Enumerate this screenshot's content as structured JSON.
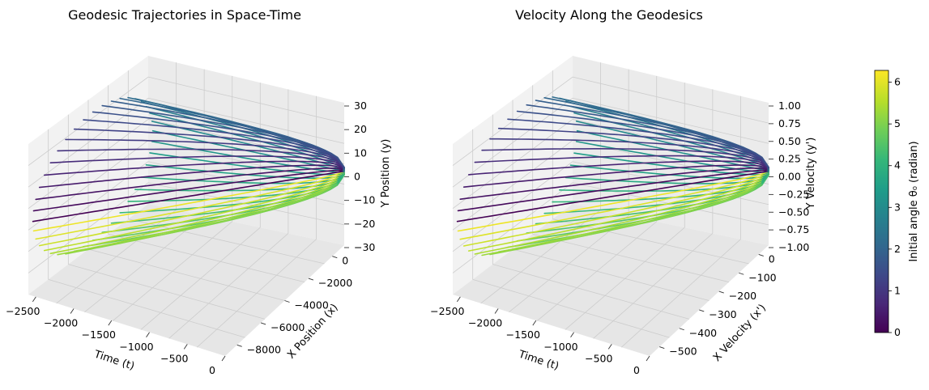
{
  "colors": {
    "pane_x": "#f2f2f2",
    "pane_y": "#ebebeb",
    "pane_z": "#e6e6e6",
    "grid": "#cccccc",
    "viridis": [
      "#440154",
      "#482878",
      "#3e4989",
      "#31688e",
      "#26828e",
      "#1f9e89",
      "#35b779",
      "#6ece58",
      "#b5de2b",
      "#fde725"
    ]
  },
  "chart_data": [
    {
      "type": "line",
      "title": "Geodesic Trajectories in Space-Time",
      "xlabel": "Time (t)",
      "ylabel": "X Position (x)",
      "zlabel": "Y Position (y)",
      "x_ticks": [
        "−2500",
        "−2000",
        "−1500",
        "−1000",
        "−500",
        "0"
      ],
      "y_ticks": [
        "0",
        "−2000",
        "−4000",
        "−6000",
        "−8000"
      ],
      "z_ticks": [
        "30",
        "20",
        "10",
        "0",
        "−10",
        "−20",
        "−30"
      ],
      "series": {
        "count": 40,
        "amplitude": 26,
        "x_min": -2600,
        "x_max": 0,
        "t_start": -2540
      }
    },
    {
      "type": "line",
      "title": "Velocity Along the Geodesics",
      "xlabel": "Time (t)",
      "ylabel": "X Velocity (x')",
      "zlabel": "Y Velocity (y')",
      "x_ticks": [
        "−2500",
        "−2000",
        "−1500",
        "−1000",
        "−500",
        "0"
      ],
      "y_ticks": [
        "0",
        "−100",
        "−200",
        "−300",
        "−400",
        "−500"
      ],
      "z_ticks": [
        "1.00",
        "0.75",
        "0.50",
        "0.25",
        "0.00",
        "−0.25",
        "−0.50",
        "−0.75",
        "−1.00"
      ],
      "series": {
        "count": 40,
        "amplitude": 1.0,
        "x_min": -560,
        "x_max": 0,
        "t_start": -2540
      }
    }
  ],
  "colorbar": {
    "label": "Initial angle θ₀ (radian)",
    "ticks": [
      "0",
      "1",
      "2",
      "3",
      "4",
      "5",
      "6"
    ],
    "min": 0,
    "max": 6.283
  }
}
